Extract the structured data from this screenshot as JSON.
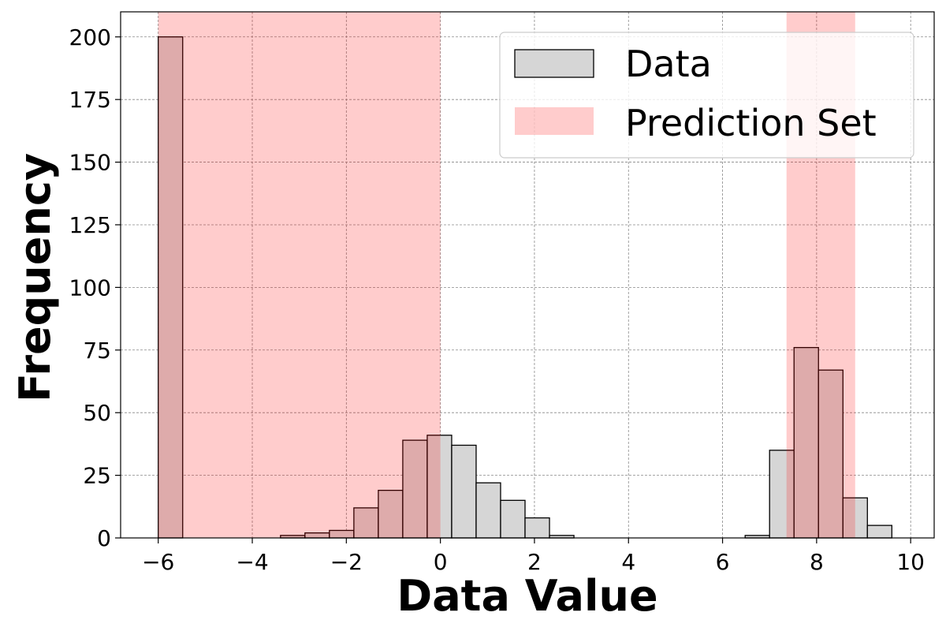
{
  "chart_data": {
    "type": "bar",
    "xlabel": "Data Value",
    "ylabel": "Frequency",
    "xlim": [
      -6.8,
      10.5
    ],
    "ylim": [
      0,
      210
    ],
    "xticks": [
      -6,
      -4,
      -2,
      0,
      2,
      4,
      6,
      8,
      10
    ],
    "xtick_labels": [
      "−6",
      "−4",
      "−2",
      "0",
      "2",
      "4",
      "6",
      "8",
      "10"
    ],
    "yticks": [
      0,
      25,
      50,
      75,
      100,
      125,
      150,
      175,
      200
    ],
    "ytick_labels": [
      "0",
      "25",
      "50",
      "75",
      "100",
      "125",
      "150",
      "175",
      "200"
    ],
    "grid": true,
    "legend_position": "top-right",
    "bar_color": "#d6d6d6",
    "bar_edge_color": "#000000",
    "band_color": "#ff0000",
    "bins": [
      {
        "x0": -6.0,
        "x1": -5.48,
        "count": 200
      },
      {
        "x0": -3.4,
        "x1": -2.88,
        "count": 1
      },
      {
        "x0": -2.88,
        "x1": -2.36,
        "count": 2
      },
      {
        "x0": -2.36,
        "x1": -1.84,
        "count": 3
      },
      {
        "x0": -1.84,
        "x1": -1.32,
        "count": 12
      },
      {
        "x0": -1.32,
        "x1": -0.8,
        "count": 19
      },
      {
        "x0": -0.8,
        "x1": -0.28,
        "count": 39
      },
      {
        "x0": -0.28,
        "x1": 0.24,
        "count": 41
      },
      {
        "x0": 0.24,
        "x1": 0.76,
        "count": 37
      },
      {
        "x0": 0.76,
        "x1": 1.28,
        "count": 22
      },
      {
        "x0": 1.28,
        "x1": 1.8,
        "count": 15
      },
      {
        "x0": 1.8,
        "x1": 2.32,
        "count": 8
      },
      {
        "x0": 2.32,
        "x1": 2.84,
        "count": 1
      },
      {
        "x0": 6.48,
        "x1": 7.0,
        "count": 1
      },
      {
        "x0": 7.0,
        "x1": 7.52,
        "count": 35
      },
      {
        "x0": 7.52,
        "x1": 8.04,
        "count": 76
      },
      {
        "x0": 8.04,
        "x1": 8.56,
        "count": 67
      },
      {
        "x0": 8.56,
        "x1": 9.08,
        "count": 16
      },
      {
        "x0": 9.08,
        "x1": 9.6,
        "count": 5
      }
    ],
    "prediction_intervals": [
      {
        "x0": -6.0,
        "x1": 0.0
      },
      {
        "x0": 7.36,
        "x1": 8.82
      }
    ],
    "legend": [
      {
        "label": "Data",
        "kind": "bar"
      },
      {
        "label": "Prediction Set",
        "kind": "band"
      }
    ]
  }
}
